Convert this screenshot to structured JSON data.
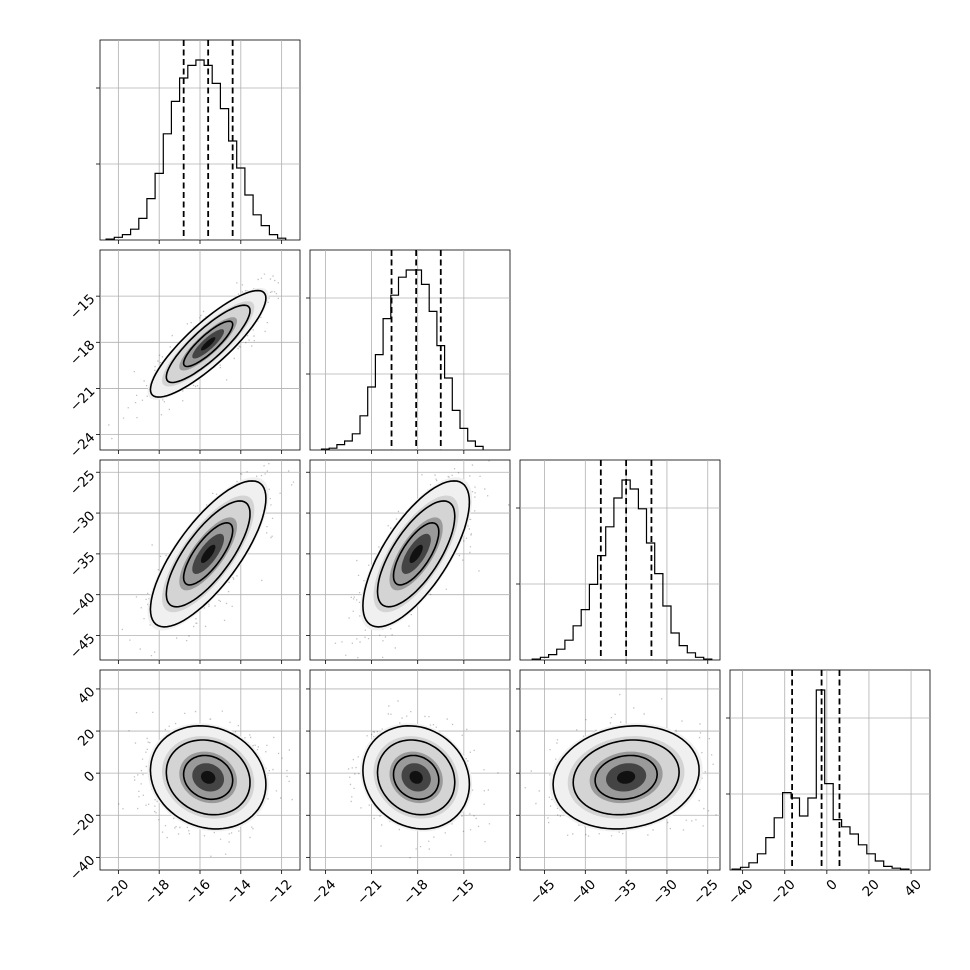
{
  "chart_data": {
    "type": "corner",
    "grid": true,
    "parameters": [
      {
        "range": [
          -20.9,
          -11.1
        ],
        "ticks": [
          -20,
          -18,
          -16,
          -14,
          -12
        ],
        "tick_labels": [
          "−20",
          "−18",
          "−16",
          "−14",
          "−12"
        ],
        "quantiles": [
          -16.8,
          -15.6,
          -14.4
        ],
        "histogram": {
          "bins": [
            -20.4,
            -20.0,
            -19.6,
            -19.2,
            -18.8,
            -18.4,
            -18.0,
            -17.6,
            -17.2,
            -16.8,
            -16.4,
            -16.0,
            -15.6,
            -15.2,
            -14.8,
            -14.4,
            -14.0,
            -13.6,
            -13.2,
            -12.8,
            -12.4,
            -12.0
          ],
          "counts": [
            0.5,
            1.5,
            3,
            6,
            12,
            23,
            37,
            59,
            77,
            90,
            97,
            100,
            97,
            87,
            73,
            55,
            40,
            25,
            14,
            8,
            3,
            1
          ]
        }
      },
      {
        "range": [
          -25.0,
          -12.0
        ],
        "ticks": [
          -24,
          -21,
          -18,
          -15
        ],
        "tick_labels": [
          "−24",
          "−21",
          "−18",
          "−15"
        ],
        "quantiles": [
          -19.7,
          -18.1,
          -16.5
        ],
        "histogram": {
          "bins": [
            -24.0,
            -23.5,
            -23.0,
            -22.5,
            -22.0,
            -21.5,
            -21.0,
            -20.5,
            -20.0,
            -19.5,
            -19.0,
            -18.5,
            -18.0,
            -17.5,
            -17.0,
            -16.5,
            -16.0,
            -15.5,
            -15.0,
            -14.5,
            -14.0
          ],
          "counts": [
            0.5,
            1,
            3,
            5,
            9,
            19,
            35,
            53,
            73,
            86,
            96,
            100,
            100,
            92,
            77,
            58,
            40,
            22,
            12,
            5,
            2
          ]
        }
      },
      {
        "range": [
          -48.0,
          -23.5
        ],
        "ticks": [
          -45,
          -40,
          -35,
          -30,
          -25
        ],
        "tick_labels": [
          "−45",
          "−40",
          "−35",
          "−30",
          "−25"
        ],
        "quantiles": [
          -38.1,
          -35.0,
          -31.9
        ],
        "histogram": {
          "bins": [
            -46.0,
            -45.0,
            -44.0,
            -43.0,
            -42.0,
            -41.0,
            -40.0,
            -39.0,
            -38.0,
            -37.0,
            -36.0,
            -35.0,
            -34.0,
            -33.0,
            -32.0,
            -31.0,
            -30.0,
            -29.0,
            -28.0,
            -27.0,
            -26.0,
            -25.0
          ],
          "counts": [
            0.5,
            1.5,
            3,
            6,
            11,
            19,
            28,
            42,
            58,
            74,
            90,
            100,
            95,
            84,
            65,
            48,
            30,
            15,
            8,
            4,
            1.5,
            0.5
          ]
        }
      },
      {
        "range": [
          -46.0,
          49.0
        ],
        "ticks": [
          -40,
          -20,
          0,
          20,
          40
        ],
        "tick_labels": [
          "−40",
          "−20",
          "0",
          "20",
          "40"
        ],
        "quantiles": [
          -16.5,
          -2.5,
          6.0
        ],
        "histogram": {
          "bins": [
            -43.0,
            -39.0,
            -35.0,
            -31.0,
            -27.0,
            -23.0,
            -19.0,
            -15.0,
            -11.0,
            -7.0,
            -3.0,
            1.0,
            5.0,
            9.0,
            13.0,
            17.0,
            21.0,
            25.0,
            29.0,
            33.0,
            37.0
          ],
          "counts": [
            0.5,
            1.5,
            4,
            9,
            18,
            29,
            43,
            40,
            30,
            40,
            100,
            48,
            28,
            24,
            20,
            14,
            9,
            5,
            2,
            1,
            0.5
          ]
        }
      }
    ],
    "pairs": [
      {
        "row": 1,
        "col": 0,
        "mean": [
          -15.6,
          -18.1
        ],
        "cov": [
          [
            2.0,
            2.1
          ],
          [
            2.1,
            3.0
          ]
        ]
      },
      {
        "row": 2,
        "col": 0,
        "mean": [
          -15.6,
          -35.0
        ],
        "cov": [
          [
            2.0,
            4.8
          ],
          [
            4.8,
            20.0
          ]
        ]
      },
      {
        "row": 2,
        "col": 1,
        "mean": [
          -18.1,
          -35.0
        ],
        "cov": [
          [
            3.0,
            5.5
          ],
          [
            5.5,
            20.0
          ]
        ]
      },
      {
        "row": 3,
        "col": 0,
        "mean": [
          -15.6,
          -2.0
        ],
        "cov": [
          [
            2.0,
            -2.4
          ],
          [
            -2.4,
            150.0
          ]
        ]
      },
      {
        "row": 3,
        "col": 1,
        "mean": [
          -18.1,
          -2.0
        ],
        "cov": [
          [
            3.0,
            -2.8
          ],
          [
            -2.8,
            150.0
          ]
        ]
      },
      {
        "row": 3,
        "col": 2,
        "mean": [
          -35.0,
          -2.0
        ],
        "cov": [
          [
            20.0,
            7.5
          ],
          [
            7.5,
            150.0
          ]
        ]
      }
    ]
  }
}
